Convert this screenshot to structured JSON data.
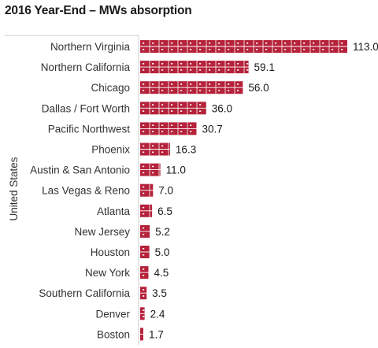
{
  "chart_data": {
    "type": "bar",
    "orientation": "horizontal",
    "title": "2016 Year-End – MWs absorption",
    "ylabel": "United States",
    "xlabel": "",
    "categories": [
      "Northern Virginia",
      "Northern California",
      "Chicago",
      "Dallas / Fort Worth",
      "Pacific Northwest",
      "Phoenix",
      "Austin & San Antonio",
      "Las Vegas & Reno",
      "Atlanta",
      "New Jersey",
      "Houston",
      "New York",
      "Southern California",
      "Denver",
      "Boston"
    ],
    "values": [
      113.0,
      59.1,
      56.0,
      36.0,
      30.7,
      16.3,
      11.0,
      7.0,
      6.5,
      5.2,
      5.0,
      4.5,
      3.5,
      2.4,
      1.7
    ],
    "value_labels": [
      "113.0",
      "59.1",
      "56.0",
      "36.0",
      "30.7",
      "16.3",
      "11.0",
      "7.0",
      "6.5",
      "5.2",
      "5.0",
      "4.5",
      "3.5",
      "2.4",
      "1.7"
    ],
    "xlim": [
      0,
      113
    ],
    "grid": false,
    "legend": "none",
    "bar_color": "#b5223a",
    "bar_style": "server-rack-pictogram"
  }
}
